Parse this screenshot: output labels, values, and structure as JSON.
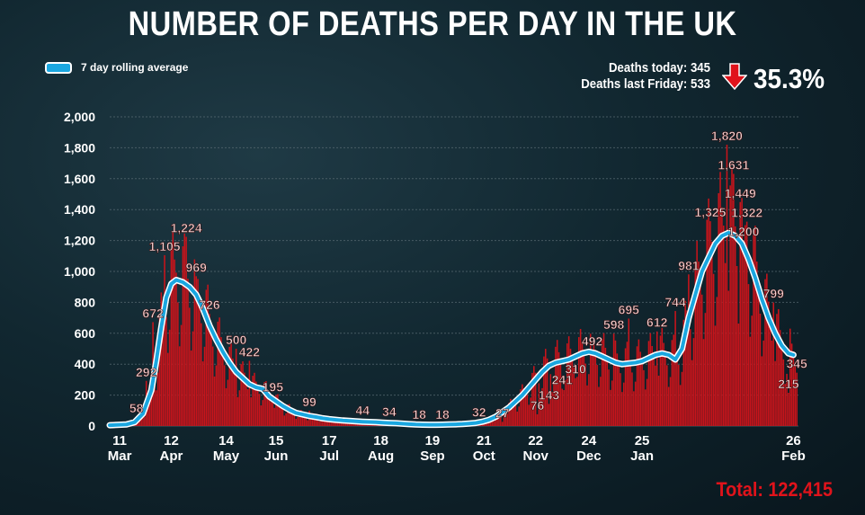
{
  "title": "NUMBER OF DEATHS PER DAY IN THE UK",
  "legend": {
    "label": "7 day rolling average",
    "color": "#1aa7e0"
  },
  "stats": {
    "today": "Deaths today: 345",
    "last_friday": "Deaths last Friday: 533",
    "change_pct": "35.3%",
    "arrow_icon": "down-arrow-icon"
  },
  "total": "Total: 122,415",
  "colors": {
    "bars": "#c8141b",
    "line": "#1aa7e0",
    "grid": "#5c6e76",
    "label_fill": "#f2d4d4"
  },
  "chart_data": {
    "type": "bar",
    "title": "NUMBER OF DEATHS PER DAY IN THE UK",
    "xlabel": "",
    "ylabel": "",
    "ylim": [
      0,
      2000
    ],
    "grid": true,
    "legend_position": "top-left",
    "y_ticks": [
      "0",
      "200",
      "400",
      "600",
      "800",
      "1,000",
      "1,200",
      "1,400",
      "1,600",
      "1,800",
      "2,000"
    ],
    "x_ticks": [
      {
        "day": "11",
        "month": "Mar"
      },
      {
        "day": "12",
        "month": "Apr"
      },
      {
        "day": "14",
        "month": "May"
      },
      {
        "day": "15",
        "month": "Jun"
      },
      {
        "day": "17",
        "month": "Jul"
      },
      {
        "day": "18",
        "month": "Aug"
      },
      {
        "day": "19",
        "month": "Sep"
      },
      {
        "day": "21",
        "month": "Oct"
      },
      {
        "day": "22",
        "month": "Nov"
      },
      {
        "day": "24",
        "month": "Dec"
      },
      {
        "day": "25",
        "month": "Jan"
      },
      {
        "day": "26",
        "month": "Feb"
      }
    ],
    "series": [
      {
        "name": "7 day rolling average",
        "type": "line",
        "values": [
          [
            0,
            5
          ],
          [
            10,
            10
          ],
          [
            15,
            25
          ],
          [
            20,
            80
          ],
          [
            25,
            230
          ],
          [
            28,
            420
          ],
          [
            31,
            640
          ],
          [
            34,
            830
          ],
          [
            37,
            920
          ],
          [
            40,
            945
          ],
          [
            44,
            930
          ],
          [
            48,
            900
          ],
          [
            52,
            850
          ],
          [
            56,
            760
          ],
          [
            60,
            650
          ],
          [
            64,
            560
          ],
          [
            68,
            480
          ],
          [
            72,
            410
          ],
          [
            76,
            350
          ],
          [
            80,
            310
          ],
          [
            84,
            270
          ],
          [
            88,
            250
          ],
          [
            92,
            240
          ],
          [
            96,
            190
          ],
          [
            100,
            160
          ],
          [
            104,
            130
          ],
          [
            108,
            105
          ],
          [
            112,
            85
          ],
          [
            116,
            75
          ],
          [
            120,
            65
          ],
          [
            124,
            58
          ],
          [
            128,
            50
          ],
          [
            132,
            44
          ],
          [
            136,
            40
          ],
          [
            140,
            36
          ],
          [
            144,
            33
          ],
          [
            148,
            30
          ],
          [
            152,
            28
          ],
          [
            156,
            26
          ],
          [
            160,
            25
          ],
          [
            164,
            22
          ],
          [
            168,
            20
          ],
          [
            172,
            18
          ],
          [
            176,
            15
          ],
          [
            180,
            12
          ],
          [
            184,
            10
          ],
          [
            188,
            9
          ],
          [
            192,
            8
          ],
          [
            196,
            8
          ],
          [
            200,
            9
          ],
          [
            204,
            10
          ],
          [
            208,
            11
          ],
          [
            212,
            13
          ],
          [
            216,
            16
          ],
          [
            220,
            20
          ],
          [
            224,
            28
          ],
          [
            228,
            40
          ],
          [
            232,
            60
          ],
          [
            236,
            90
          ],
          [
            240,
            120
          ],
          [
            244,
            160
          ],
          [
            248,
            200
          ],
          [
            252,
            250
          ],
          [
            256,
            300
          ],
          [
            260,
            350
          ],
          [
            264,
            390
          ],
          [
            268,
            410
          ],
          [
            272,
            420
          ],
          [
            276,
            430
          ],
          [
            280,
            450
          ],
          [
            284,
            470
          ],
          [
            288,
            480
          ],
          [
            292,
            470
          ],
          [
            296,
            450
          ],
          [
            300,
            430
          ],
          [
            304,
            410
          ],
          [
            308,
            400
          ],
          [
            312,
            405
          ],
          [
            316,
            410
          ],
          [
            320,
            420
          ],
          [
            324,
            440
          ],
          [
            328,
            460
          ],
          [
            332,
            470
          ],
          [
            336,
            460
          ],
          [
            340,
            430
          ],
          [
            344,
            500
          ],
          [
            348,
            700
          ],
          [
            352,
            850
          ],
          [
            356,
            1000
          ],
          [
            360,
            1090
          ],
          [
            364,
            1180
          ],
          [
            368,
            1230
          ],
          [
            372,
            1250
          ],
          [
            376,
            1230
          ],
          [
            380,
            1180
          ],
          [
            384,
            1080
          ],
          [
            388,
            960
          ],
          [
            392,
            820
          ],
          [
            396,
            700
          ],
          [
            400,
            600
          ],
          [
            404,
            520
          ],
          [
            408,
            470
          ],
          [
            411,
            460
          ]
        ]
      },
      {
        "name": "Daily deaths",
        "type": "bar",
        "labels": [
          {
            "d": 16,
            "v": 58,
            "text": "58"
          },
          {
            "d": 22,
            "v": 292,
            "text": "292"
          },
          {
            "d": 26,
            "v": 672,
            "text": "672"
          },
          {
            "d": 33,
            "v": 1105,
            "text": "1,105"
          },
          {
            "d": 46,
            "v": 1224,
            "text": "1,224"
          },
          {
            "d": 52,
            "v": 969,
            "text": "969"
          },
          {
            "d": 60,
            "v": 726,
            "text": "726"
          },
          {
            "d": 76,
            "v": 500,
            "text": "500"
          },
          {
            "d": 84,
            "v": 422,
            "text": "422"
          },
          {
            "d": 98,
            "v": 195,
            "text": "195"
          },
          {
            "d": 120,
            "v": 99,
            "text": "99"
          },
          {
            "d": 152,
            "v": 44,
            "text": "44"
          },
          {
            "d": 168,
            "v": 34,
            "text": "34"
          },
          {
            "d": 186,
            "v": 18,
            "text": "18"
          },
          {
            "d": 200,
            "v": 18,
            "text": "18"
          },
          {
            "d": 222,
            "v": 32,
            "text": "32"
          },
          {
            "d": 236,
            "v": 27,
            "text": "27"
          },
          {
            "d": 257,
            "v": 76,
            "text": "76"
          },
          {
            "d": 264,
            "v": 143,
            "text": "143"
          },
          {
            "d": 272,
            "v": 241,
            "text": "241"
          },
          {
            "d": 280,
            "v": 310,
            "text": "310"
          },
          {
            "d": 290,
            "v": 492,
            "text": "492"
          },
          {
            "d": 303,
            "v": 598,
            "text": "598"
          },
          {
            "d": 312,
            "v": 695,
            "text": "695"
          },
          {
            "d": 329,
            "v": 612,
            "text": "612"
          },
          {
            "d": 340,
            "v": 744,
            "text": "744"
          },
          {
            "d": 348,
            "v": 981,
            "text": "981"
          },
          {
            "d": 361,
            "v": 1325,
            "text": "1,325"
          },
          {
            "d": 371,
            "v": 1820,
            "text": "1,820"
          },
          {
            "d": 375,
            "v": 1631,
            "text": "1,631"
          },
          {
            "d": 379,
            "v": 1449,
            "text": "1,449"
          },
          {
            "d": 383,
            "v": 1322,
            "text": "1,322"
          },
          {
            "d": 381,
            "v": 1200,
            "text": "1,200"
          },
          {
            "d": 399,
            "v": 799,
            "text": "799"
          },
          {
            "d": 413,
            "v": 345,
            "text": "345"
          },
          {
            "d": 408,
            "v": 215,
            "text": "215"
          }
        ]
      }
    ]
  }
}
